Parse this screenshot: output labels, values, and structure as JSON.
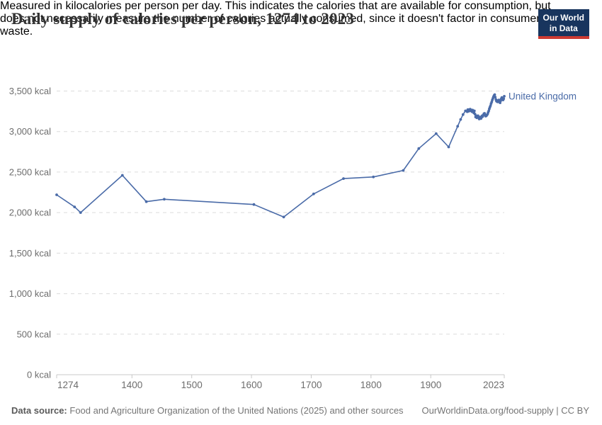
{
  "header": {
    "title": "Daily supply of calories per person, 1274 to 2023",
    "subtitle_lines": [
      "Measured in kilocalories per person per day. This indicates the calories that are available for consumption, but",
      "does not necessarily measure the number of calories actually consumed, since it doesn't factor in consumer",
      "waste."
    ],
    "logo": {
      "line1": "Our World",
      "line2": "in Data"
    }
  },
  "chart_data": {
    "type": "line",
    "title": "Daily supply of calories per person, 1274 to 2023",
    "xlabel": "",
    "ylabel": "",
    "unit": "kcal",
    "grid": "horizontal-dashed",
    "legend_position": "end-of-line",
    "xlim": [
      1274,
      2023
    ],
    "ylim": [
      0,
      3500
    ],
    "x_ticks": [
      {
        "value": 1274,
        "label": "1274",
        "align": "start"
      },
      {
        "value": 1400,
        "label": "1400",
        "align": "middle"
      },
      {
        "value": 1500,
        "label": "1500",
        "align": "middle"
      },
      {
        "value": 1600,
        "label": "1600",
        "align": "middle"
      },
      {
        "value": 1700,
        "label": "1700",
        "align": "middle"
      },
      {
        "value": 1800,
        "label": "1800",
        "align": "middle"
      },
      {
        "value": 1900,
        "label": "1900",
        "align": "middle"
      },
      {
        "value": 2023,
        "label": "2023",
        "align": "end"
      }
    ],
    "y_ticks": [
      {
        "value": 0,
        "label": "0 kcal"
      },
      {
        "value": 500,
        "label": "500 kcal"
      },
      {
        "value": 1000,
        "label": "1,000 kcal"
      },
      {
        "value": 1500,
        "label": "1,500 kcal"
      },
      {
        "value": 2000,
        "label": "2,000 kcal"
      },
      {
        "value": 2500,
        "label": "2,500 kcal"
      },
      {
        "value": 3000,
        "label": "3,000 kcal"
      },
      {
        "value": 3500,
        "label": "3,500 kcal"
      }
    ],
    "series": [
      {
        "name": "United Kingdom",
        "color": "#4a6ba8",
        "points": [
          [
            1274,
            2220
          ],
          [
            1304,
            2070
          ],
          [
            1314,
            2000
          ],
          [
            1384,
            2460
          ],
          [
            1424,
            2135
          ],
          [
            1454,
            2165
          ],
          [
            1604,
            2100
          ],
          [
            1654,
            1945
          ],
          [
            1704,
            2230
          ],
          [
            1754,
            2420
          ],
          [
            1804,
            2440
          ],
          [
            1854,
            2520
          ],
          [
            1880,
            2790
          ],
          [
            1909,
            2975
          ],
          [
            1930,
            2810
          ],
          [
            1945,
            3065
          ],
          [
            1950,
            3150
          ],
          [
            1954,
            3210
          ],
          [
            1958,
            3255
          ],
          [
            1961,
            3245
          ],
          [
            1962,
            3270
          ],
          [
            1963,
            3250
          ],
          [
            1964,
            3270
          ],
          [
            1965,
            3255
          ],
          [
            1966,
            3275
          ],
          [
            1967,
            3260
          ],
          [
            1968,
            3265
          ],
          [
            1969,
            3245
          ],
          [
            1970,
            3265
          ],
          [
            1971,
            3245
          ],
          [
            1972,
            3230
          ],
          [
            1973,
            3255
          ],
          [
            1974,
            3215
          ],
          [
            1975,
            3180
          ],
          [
            1976,
            3195
          ],
          [
            1977,
            3170
          ],
          [
            1978,
            3185
          ],
          [
            1979,
            3195
          ],
          [
            1980,
            3175
          ],
          [
            1981,
            3155
          ],
          [
            1982,
            3165
          ],
          [
            1983,
            3180
          ],
          [
            1984,
            3160
          ],
          [
            1985,
            3175
          ],
          [
            1986,
            3195
          ],
          [
            1987,
            3185
          ],
          [
            1988,
            3205
          ],
          [
            1989,
            3220
          ],
          [
            1990,
            3225
          ],
          [
            1991,
            3205
          ],
          [
            1992,
            3190
          ],
          [
            1993,
            3195
          ],
          [
            1994,
            3205
          ],
          [
            1995,
            3215
          ],
          [
            1996,
            3235
          ],
          [
            1997,
            3255
          ],
          [
            1998,
            3280
          ],
          [
            1999,
            3300
          ],
          [
            2000,
            3320
          ],
          [
            2001,
            3345
          ],
          [
            2002,
            3365
          ],
          [
            2003,
            3390
          ],
          [
            2004,
            3410
          ],
          [
            2005,
            3430
          ],
          [
            2006,
            3445
          ],
          [
            2007,
            3455
          ],
          [
            2008,
            3425
          ],
          [
            2009,
            3395
          ],
          [
            2010,
            3375
          ],
          [
            2011,
            3370
          ],
          [
            2012,
            3365
          ],
          [
            2013,
            3385
          ],
          [
            2014,
            3390
          ],
          [
            2015,
            3370
          ],
          [
            2016,
            3355
          ],
          [
            2017,
            3380
          ],
          [
            2018,
            3405
          ],
          [
            2019,
            3420
          ],
          [
            2020,
            3400
          ],
          [
            2021,
            3390
          ],
          [
            2022,
            3405
          ],
          [
            2023,
            3435
          ]
        ]
      }
    ]
  },
  "footer": {
    "source_label": "Data source:",
    "source_text": "Food and Agriculture Organization of the United Nations (2025) and other sources",
    "right_text": "OurWorldinData.org/food-supply | CC BY"
  },
  "colors": {
    "line": "#4a6ba8",
    "gridline": "#dcdcdc",
    "axis": "#c8c8c8",
    "tick_label": "#6d6d6d",
    "logo_bg": "#18355e",
    "logo_bar": "#cd3b32"
  }
}
